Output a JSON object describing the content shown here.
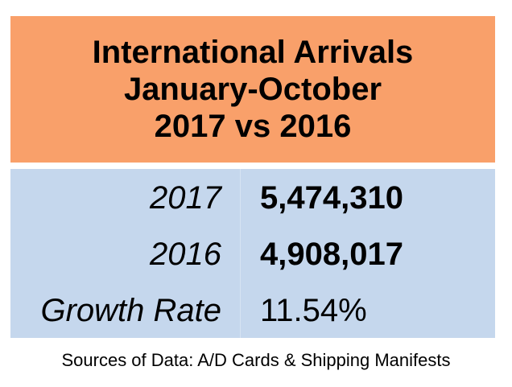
{
  "header": {
    "lines": [
      "International Arrivals",
      "January-October",
      "2017 vs 2016"
    ]
  },
  "table": {
    "rows": [
      [
        "2017",
        "5,474,310"
      ],
      [
        "2016",
        "4,908,017"
      ],
      [
        "Growth Rate",
        "11.54%"
      ]
    ]
  },
  "footer": {
    "source": "Sources of Data: A/D Cards & Shipping Manifests"
  }
}
